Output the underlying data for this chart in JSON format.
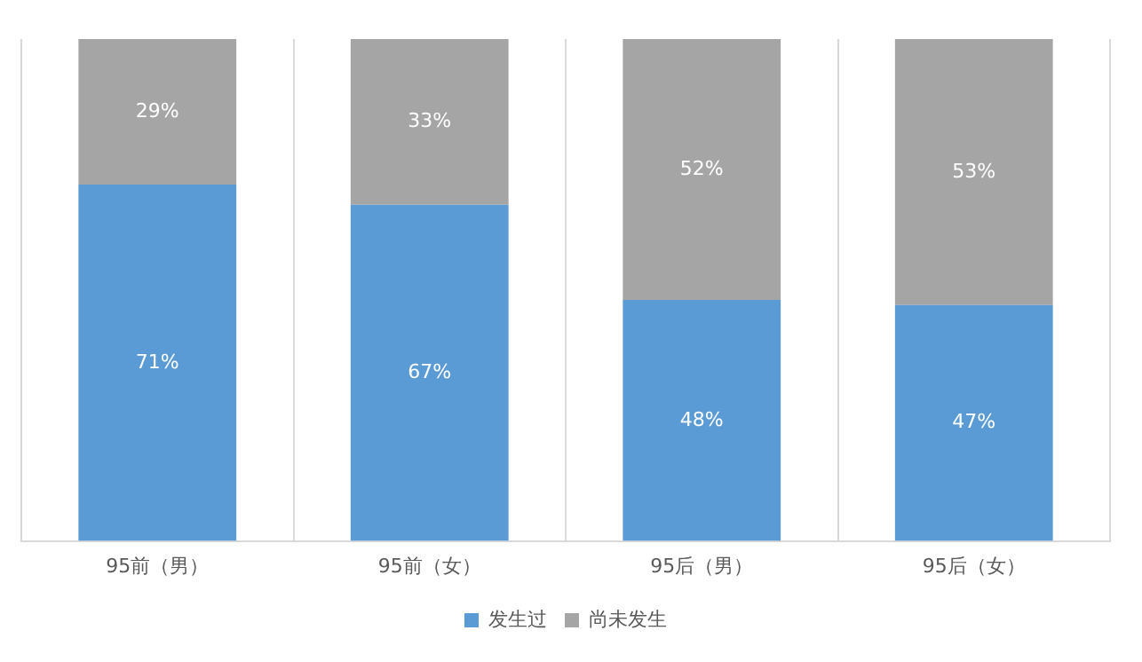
{
  "chart_data": {
    "type": "bar",
    "stacked": true,
    "categories": [
      "95前（男）",
      "95前（女）",
      "95后（男）",
      "95后（女）"
    ],
    "series": [
      {
        "name": "发生过",
        "color": "#5b9bd5",
        "values": [
          71,
          67,
          48,
          47
        ],
        "value_labels": [
          "71%",
          "67%",
          "48%",
          "47%"
        ]
      },
      {
        "name": "尚未发生",
        "color": "#a5a5a5",
        "values": [
          29,
          33,
          52,
          53
        ],
        "value_labels": [
          "29%",
          "33%",
          "52%",
          "53%"
        ]
      }
    ],
    "ylim": [
      0,
      100
    ],
    "tick_labels": "x",
    "grid": "x",
    "legend": "bottom"
  }
}
